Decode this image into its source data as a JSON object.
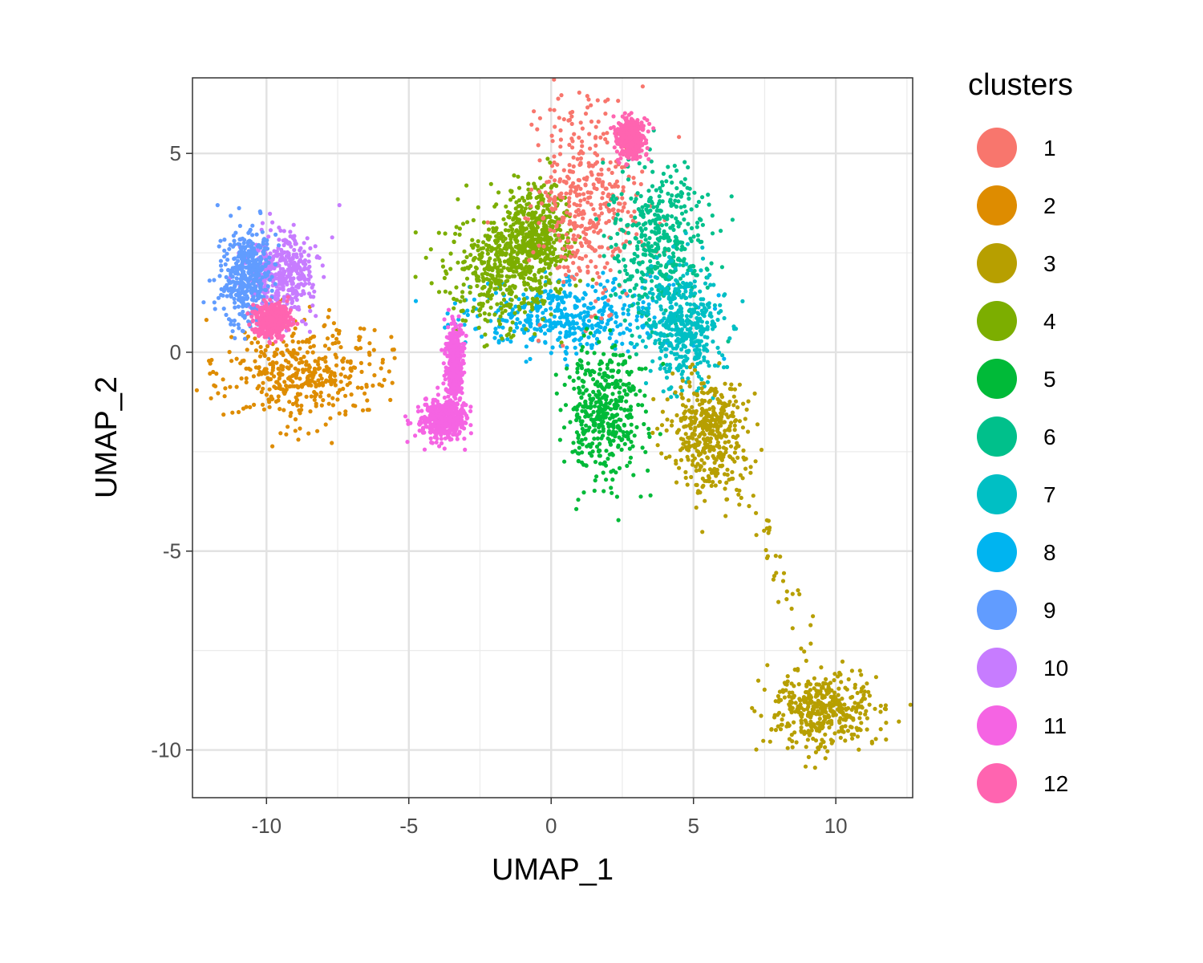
{
  "chart_data": {
    "type": "scatter",
    "title": "",
    "xlabel": "UMAP_1",
    "ylabel": "UMAP_2",
    "xlim": [
      -12.6,
      12.7
    ],
    "ylim": [
      -11.2,
      6.9
    ],
    "x_ticks": [
      -10,
      -5,
      0,
      5,
      10
    ],
    "y_ticks": [
      5,
      0,
      -5,
      -10
    ],
    "x_tick_labels": [
      "-10",
      "-5",
      "0",
      "5",
      "10"
    ],
    "y_tick_labels": [
      "5",
      "0",
      "-5",
      "-10"
    ],
    "grid": true,
    "legend": {
      "title": "clusters",
      "placement": "right",
      "labels": [
        "1",
        "2",
        "3",
        "4",
        "5",
        "6",
        "7",
        "8",
        "9",
        "10",
        "11",
        "12"
      ]
    },
    "series": [
      {
        "name": "1",
        "color": "#F8766D",
        "regions": [
          {
            "cx": 1.3,
            "cy": 3.8,
            "sx": 0.9,
            "sy": 1.3
          }
        ]
      },
      {
        "name": "2",
        "color": "#DE8C00",
        "regions": [
          {
            "cx": -8.7,
            "cy": -0.5,
            "sx": 1.4,
            "sy": 0.65
          }
        ]
      },
      {
        "name": "3",
        "color": "#B79F00",
        "regions": [
          {
            "cx": 9.6,
            "cy": -9.0,
            "sx": 0.9,
            "sy": 0.5
          },
          {
            "cx": 5.5,
            "cy": -2.0,
            "sx": 0.7,
            "sy": 0.7
          }
        ]
      },
      {
        "name": "4",
        "color": "#7CAE00",
        "regions": [
          {
            "cx": -1.8,
            "cy": 2.0,
            "sx": 1.0,
            "sy": 0.7
          },
          {
            "cx": -0.5,
            "cy": 3.0,
            "sx": 0.6,
            "sy": 0.6
          }
        ]
      },
      {
        "name": "5",
        "color": "#00BA38",
        "regions": [
          {
            "cx": 1.8,
            "cy": -1.5,
            "sx": 0.7,
            "sy": 0.9
          }
        ]
      },
      {
        "name": "6",
        "color": "#00C08B",
        "regions": [
          {
            "cx": 3.8,
            "cy": 2.8,
            "sx": 0.9,
            "sy": 0.9
          }
        ]
      },
      {
        "name": "7",
        "color": "#00BFC4",
        "regions": [
          {
            "cx": 4.6,
            "cy": 0.7,
            "sx": 0.7,
            "sy": 0.8
          }
        ]
      },
      {
        "name": "8",
        "color": "#00B4F0",
        "regions": [
          {
            "cx": 0.6,
            "cy": 0.9,
            "sx": 1.8,
            "sy": 0.45
          }
        ]
      },
      {
        "name": "9",
        "color": "#619CFF",
        "regions": [
          {
            "cx": -10.7,
            "cy": 1.9,
            "sx": 0.45,
            "sy": 0.6
          }
        ]
      },
      {
        "name": "10",
        "color": "#C77CFF",
        "regions": [
          {
            "cx": -9.4,
            "cy": 2.0,
            "sx": 0.6,
            "sy": 0.55
          }
        ]
      },
      {
        "name": "11",
        "color": "#F564E3",
        "regions": [
          {
            "cx": -3.8,
            "cy": -1.7,
            "sx": 0.4,
            "sy": 0.25
          },
          {
            "cx": -3.4,
            "cy": -0.3,
            "sx": 0.15,
            "sy": 0.5
          }
        ]
      },
      {
        "name": "12",
        "color": "#FF64B0",
        "regions": [
          {
            "cx": 2.8,
            "cy": 5.4,
            "sx": 0.25,
            "sy": 0.25
          },
          {
            "cx": -9.8,
            "cy": 0.8,
            "sx": 0.3,
            "sy": 0.2
          }
        ]
      }
    ]
  }
}
